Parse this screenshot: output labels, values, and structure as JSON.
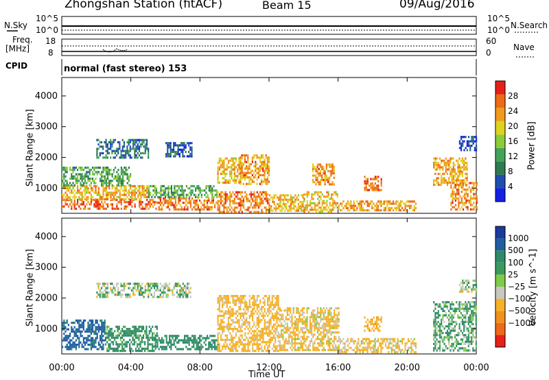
{
  "header": {
    "station": "Zhongshan Station (fitACF)",
    "beam": "Beam 15",
    "date": "09/Aug/2016"
  },
  "top_panels": {
    "nsky_label": "N.Sky",
    "nsky_ticks": [
      "10^5",
      "10^0"
    ],
    "nsearch_label": "N.Search",
    "nsearch_ticks": [
      "10^5",
      "10^0"
    ],
    "freq_label_1": "Freq.",
    "freq_label_2": "[MHz]",
    "freq_ticks": [
      "18",
      "8"
    ],
    "nave_label": "Nave",
    "nave_ticks": [
      "60",
      "0"
    ],
    "cpid_label": "CPID",
    "cpid_value": "normal (fast stereo) 153"
  },
  "colors": {
    "power_scale": [
      "#1420e6",
      "#1e4fb0",
      "#2f7a50",
      "#44a35a",
      "#8ccc3a",
      "#e0d21e",
      "#f29a1c",
      "#ee6a18",
      "#e6201a"
    ],
    "velocity_scale": [
      "#1a3a9c",
      "#1f5fa0",
      "#2f8a6a",
      "#3e9a5a",
      "#7fcc4a",
      "#c8c8c0",
      "#f5b22a",
      "#f2901c",
      "#ee6a18",
      "#e6201a"
    ]
  },
  "chart_data": [
    {
      "type": "heatmap",
      "panel": "power",
      "xlabel": "Time UT",
      "ylabel": "Slant Range [km]",
      "x_ticks": [
        "00:00",
        "04:00",
        "08:00",
        "12:00",
        "16:00",
        "20:00",
        "00:00"
      ],
      "x_range_hours": [
        0,
        24
      ],
      "y_ticks": [
        "1000",
        "2000",
        "3000",
        "4000"
      ],
      "ylim": [
        180,
        4600
      ],
      "colorbar_label": "Power [dB]",
      "colorbar_ticks": [
        "4",
        "8",
        "12",
        "16",
        "20",
        "24",
        "28"
      ],
      "colorbar_range": [
        0,
        32
      ],
      "regions": [
        {
          "x": [
            0.0,
            5.5
          ],
          "y": [
            300,
            650
          ],
          "v": 27
        },
        {
          "x": [
            0.0,
            5.0
          ],
          "y": [
            650,
            1100
          ],
          "v": 22
        },
        {
          "x": [
            0.0,
            4.0
          ],
          "y": [
            1100,
            1700
          ],
          "v": 12
        },
        {
          "x": [
            5.5,
            9.0
          ],
          "y": [
            300,
            700
          ],
          "v": 25
        },
        {
          "x": [
            5.0,
            9.0
          ],
          "y": [
            700,
            1100
          ],
          "v": 13
        },
        {
          "x": [
            2.0,
            5.0
          ],
          "y": [
            2000,
            2600
          ],
          "v": 8
        },
        {
          "x": [
            6.0,
            7.5
          ],
          "y": [
            2000,
            2500
          ],
          "v": 6
        },
        {
          "x": [
            9.0,
            10.5
          ],
          "y": [
            1200,
            2000
          ],
          "v": 22
        },
        {
          "x": [
            10.3,
            12.0
          ],
          "y": [
            1100,
            2100
          ],
          "v": 24
        },
        {
          "x": [
            9.0,
            12.0
          ],
          "y": [
            250,
            900
          ],
          "v": 25
        },
        {
          "x": [
            12.0,
            14.0
          ],
          "y": [
            250,
            800
          ],
          "v": 22
        },
        {
          "x": [
            14.5,
            15.8
          ],
          "y": [
            1100,
            1800
          ],
          "v": 24
        },
        {
          "x": [
            14.0,
            16.0
          ],
          "y": [
            250,
            900
          ],
          "v": 21
        },
        {
          "x": [
            16.0,
            20.5
          ],
          "y": [
            250,
            600
          ],
          "v": 23
        },
        {
          "x": [
            17.5,
            18.5
          ],
          "y": [
            900,
            1400
          ],
          "v": 26
        },
        {
          "x": [
            21.5,
            23.5
          ],
          "y": [
            1100,
            2000
          ],
          "v": 23
        },
        {
          "x": [
            22.5,
            24.0
          ],
          "y": [
            300,
            1200
          ],
          "v": 24
        },
        {
          "x": [
            23.0,
            24.0
          ],
          "y": [
            2200,
            2700
          ],
          "v": 5
        }
      ]
    },
    {
      "type": "heatmap",
      "panel": "velocity",
      "xlabel": "Time UT",
      "ylabel": "Slant Range [km]",
      "x_ticks": [
        "00:00",
        "04:00",
        "08:00",
        "12:00",
        "16:00",
        "20:00",
        "00:00"
      ],
      "x_range_hours": [
        0,
        24
      ],
      "y_ticks": [
        "1000",
        "2000",
        "3000",
        "4000"
      ],
      "ylim": [
        180,
        4600
      ],
      "colorbar_label": "Velocity [m s^-1]",
      "colorbar_ticks": [
        "1000",
        "500",
        "100",
        "25",
        "−25",
        "−100",
        "−500",
        "−1000"
      ],
      "regions": [
        {
          "x": [
            0.0,
            2.5
          ],
          "y": [
            300,
            1300
          ],
          "v": 600
        },
        {
          "x": [
            2.5,
            5.5
          ],
          "y": [
            300,
            1100
          ],
          "v": 150
        },
        {
          "x": [
            5.5,
            9.0
          ],
          "y": [
            300,
            800
          ],
          "v": 200
        },
        {
          "x": [
            2.0,
            7.5
          ],
          "y": [
            2000,
            2500
          ],
          "v": 0
        },
        {
          "x": [
            9.0,
            12.5
          ],
          "y": [
            300,
            2100
          ],
          "v": -200
        },
        {
          "x": [
            12.5,
            16.0
          ],
          "y": [
            300,
            1700
          ],
          "v": -150
        },
        {
          "x": [
            16.0,
            20.5
          ],
          "y": [
            250,
            700
          ],
          "v": -150
        },
        {
          "x": [
            17.5,
            18.5
          ],
          "y": [
            900,
            1400
          ],
          "v": -400
        },
        {
          "x": [
            21.5,
            24.0
          ],
          "y": [
            300,
            1900
          ],
          "v": 60
        },
        {
          "x": [
            23.0,
            24.0
          ],
          "y": [
            2200,
            2600
          ],
          "v": 0
        }
      ]
    }
  ]
}
